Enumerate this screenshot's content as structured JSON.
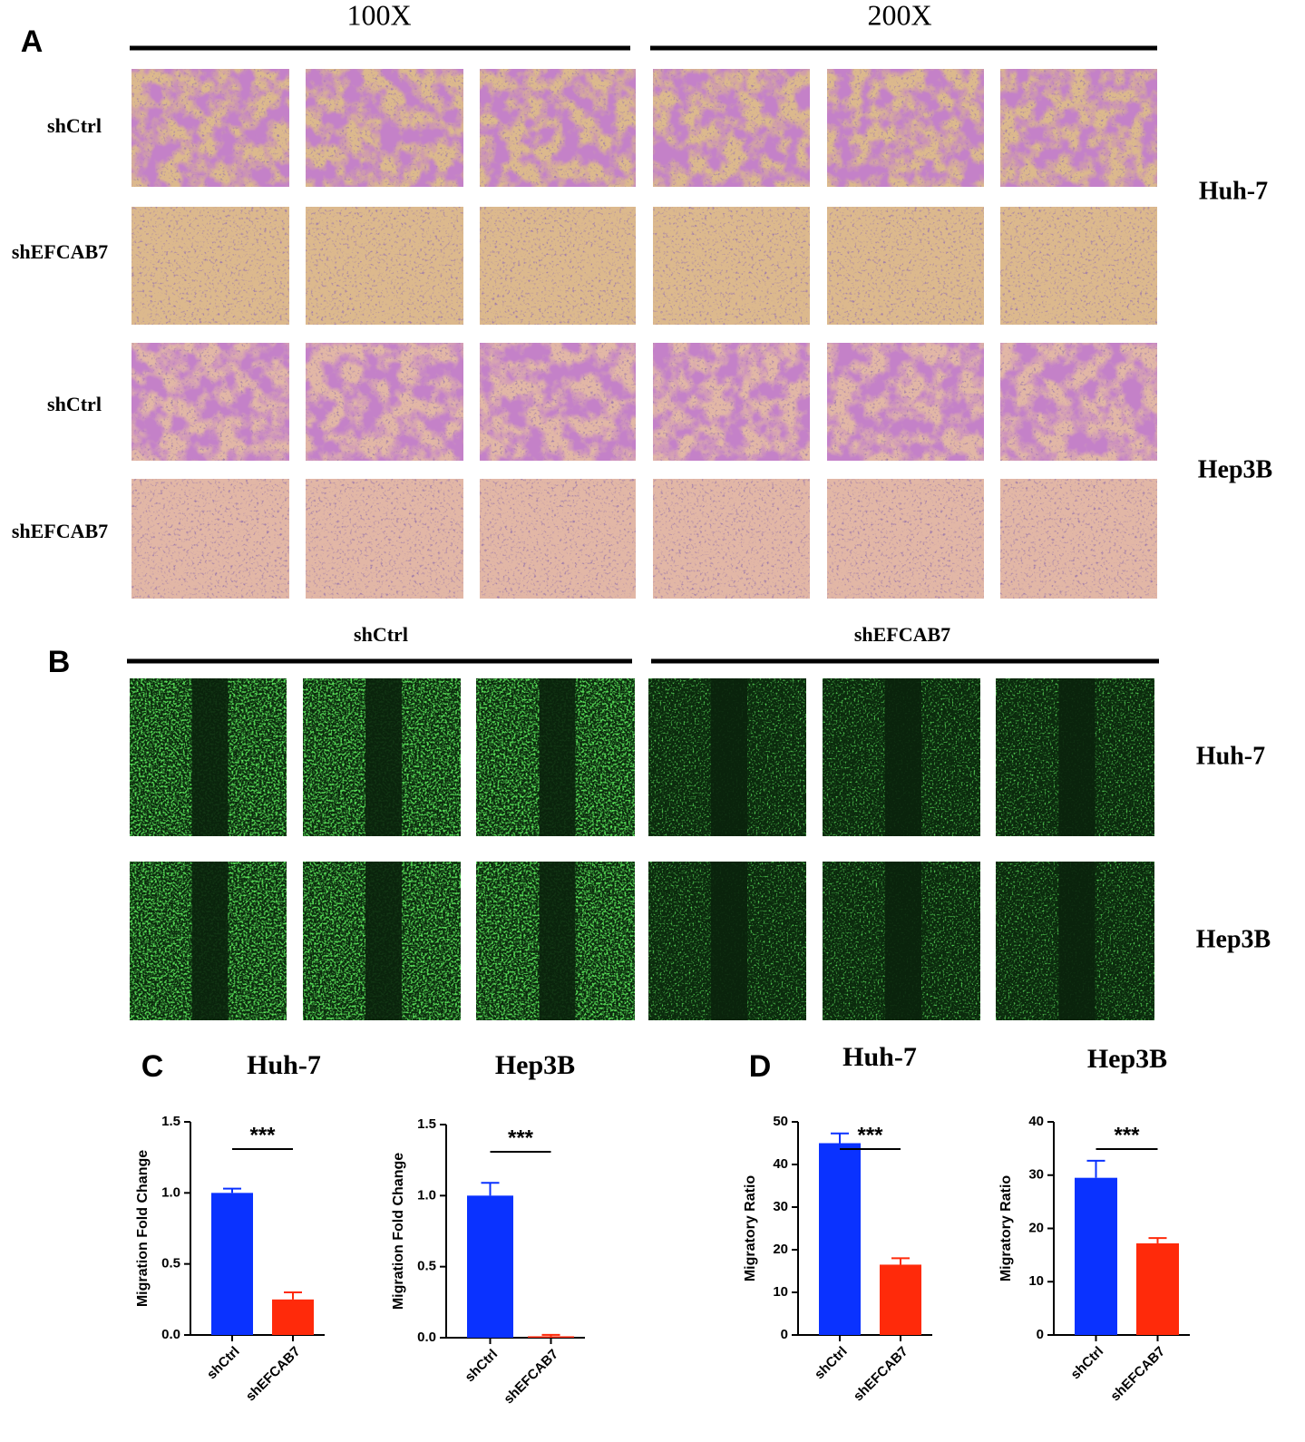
{
  "panel_a": {
    "label": "A",
    "magnifications": [
      "100X",
      "200X"
    ],
    "rows": [
      "shCtrl",
      "shEFCAB7",
      "shCtrl",
      "shEFCAB7"
    ],
    "cell_lines": [
      "Huh-7",
      "Hep3B"
    ]
  },
  "panel_b": {
    "label": "B",
    "groups": [
      "shCtrl",
      "shEFCAB7"
    ],
    "cell_lines": [
      "Huh-7",
      "Hep3B"
    ]
  },
  "panel_c": {
    "label": "C"
  },
  "panel_d": {
    "label": "D"
  },
  "chart_data": [
    {
      "type": "bar",
      "title": "Huh-7",
      "y_label": "Migration Fold Change",
      "categories": [
        "shCtrl",
        "shEFCAB7"
      ],
      "values": [
        1.0,
        0.25
      ],
      "errors": [
        0.03,
        0.05
      ],
      "colors": [
        "#0a32ff",
        "#ff2a0a"
      ],
      "significance": "***",
      "ylim": [
        0,
        1.5
      ],
      "yticks": [
        {
          "value": 0,
          "label": "0.0"
        },
        0.5,
        {
          "value": 1,
          "label": "1.0"
        },
        1.5
      ]
    },
    {
      "type": "bar",
      "title": "Hep3B",
      "y_label": "Migration Fold Change",
      "categories": [
        "shCtrl",
        "shEFCAB7"
      ],
      "values": [
        1.0,
        0.01
      ],
      "errors": [
        0.09,
        0.01
      ],
      "colors": [
        "#0a32ff",
        "#ff2a0a"
      ],
      "significance": "***",
      "ylim": [
        0,
        1.5
      ],
      "yticks": [
        {
          "value": 0,
          "label": "0.0"
        },
        0.5,
        {
          "value": 1,
          "label": "1.0"
        },
        1.5
      ]
    },
    {
      "type": "bar",
      "title": "Huh-7",
      "y_label": "Migratory Ratio",
      "categories": [
        "shCtrl",
        "shEFCAB7"
      ],
      "values": [
        45,
        16.5
      ],
      "errors": [
        2.3,
        1.5
      ],
      "colors": [
        "#0a32ff",
        "#ff2a0a"
      ],
      "significance": "***",
      "ylim": [
        0,
        50
      ],
      "yticks": [
        0,
        10,
        20,
        30,
        40,
        50
      ]
    },
    {
      "type": "bar",
      "title": "Hep3B",
      "y_label": "Migratory Ratio",
      "categories": [
        "shCtrl",
        "shEFCAB7"
      ],
      "values": [
        29.5,
        17.2
      ],
      "errors": [
        3.2,
        1.0
      ],
      "colors": [
        "#0a32ff",
        "#ff2a0a"
      ],
      "significance": "***",
      "ylim": [
        0,
        40
      ],
      "yticks": [
        0,
        10,
        20,
        30,
        40
      ]
    }
  ]
}
